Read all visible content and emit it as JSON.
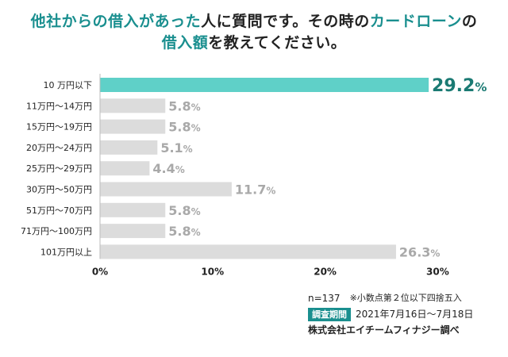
{
  "title": {
    "line1": [
      {
        "text": "他社からの",
        "hl": true
      },
      {
        "text": "借入があった",
        "hl": true
      },
      {
        "text": "人に質問です。その時の",
        "hl": false
      },
      {
        "text": "カードローン",
        "hl": true
      },
      {
        "text": "の",
        "hl": false
      }
    ],
    "line2": [
      {
        "text": "借入額",
        "hl": true
      },
      {
        "text": "を教えてください。",
        "hl": false
      }
    ]
  },
  "colors": {
    "highlight": "#1a8f8f",
    "bar_top": "#5fd0c8",
    "bar_other": "#dcdcdc",
    "label_top": "#1a7a73",
    "label_other": "#a9a9a9"
  },
  "chart_data": {
    "type": "bar",
    "orientation": "horizontal",
    "categories": [
      "10 万円以下",
      "11万円〜14万円",
      "15万円〜19万円",
      "20万円〜24万円",
      "25万円〜29万円",
      "30万円〜50万円",
      "51万円〜70万円",
      "71万円〜100万円",
      "101万円以上"
    ],
    "values": [
      29.2,
      5.8,
      5.8,
      5.1,
      4.4,
      11.7,
      5.8,
      5.8,
      26.3
    ],
    "value_labels": [
      "29.2",
      "5.8",
      "5.8",
      "5.1",
      "4.4",
      "11.7",
      "5.8",
      "5.8",
      "26.3"
    ],
    "value_unit": "%",
    "x_ticks": [
      "0%",
      "10%",
      "20%",
      "30%"
    ],
    "xlim": [
      0,
      30
    ],
    "highlight_index": 0,
    "grid": false
  },
  "footer": {
    "n": "n=137",
    "note": "※小数点第２位以下四捨五入",
    "period_label": "調査期間",
    "period": "2021年7月16日〜7月18日",
    "company": "株式会社エイチームフィナジー調べ"
  }
}
